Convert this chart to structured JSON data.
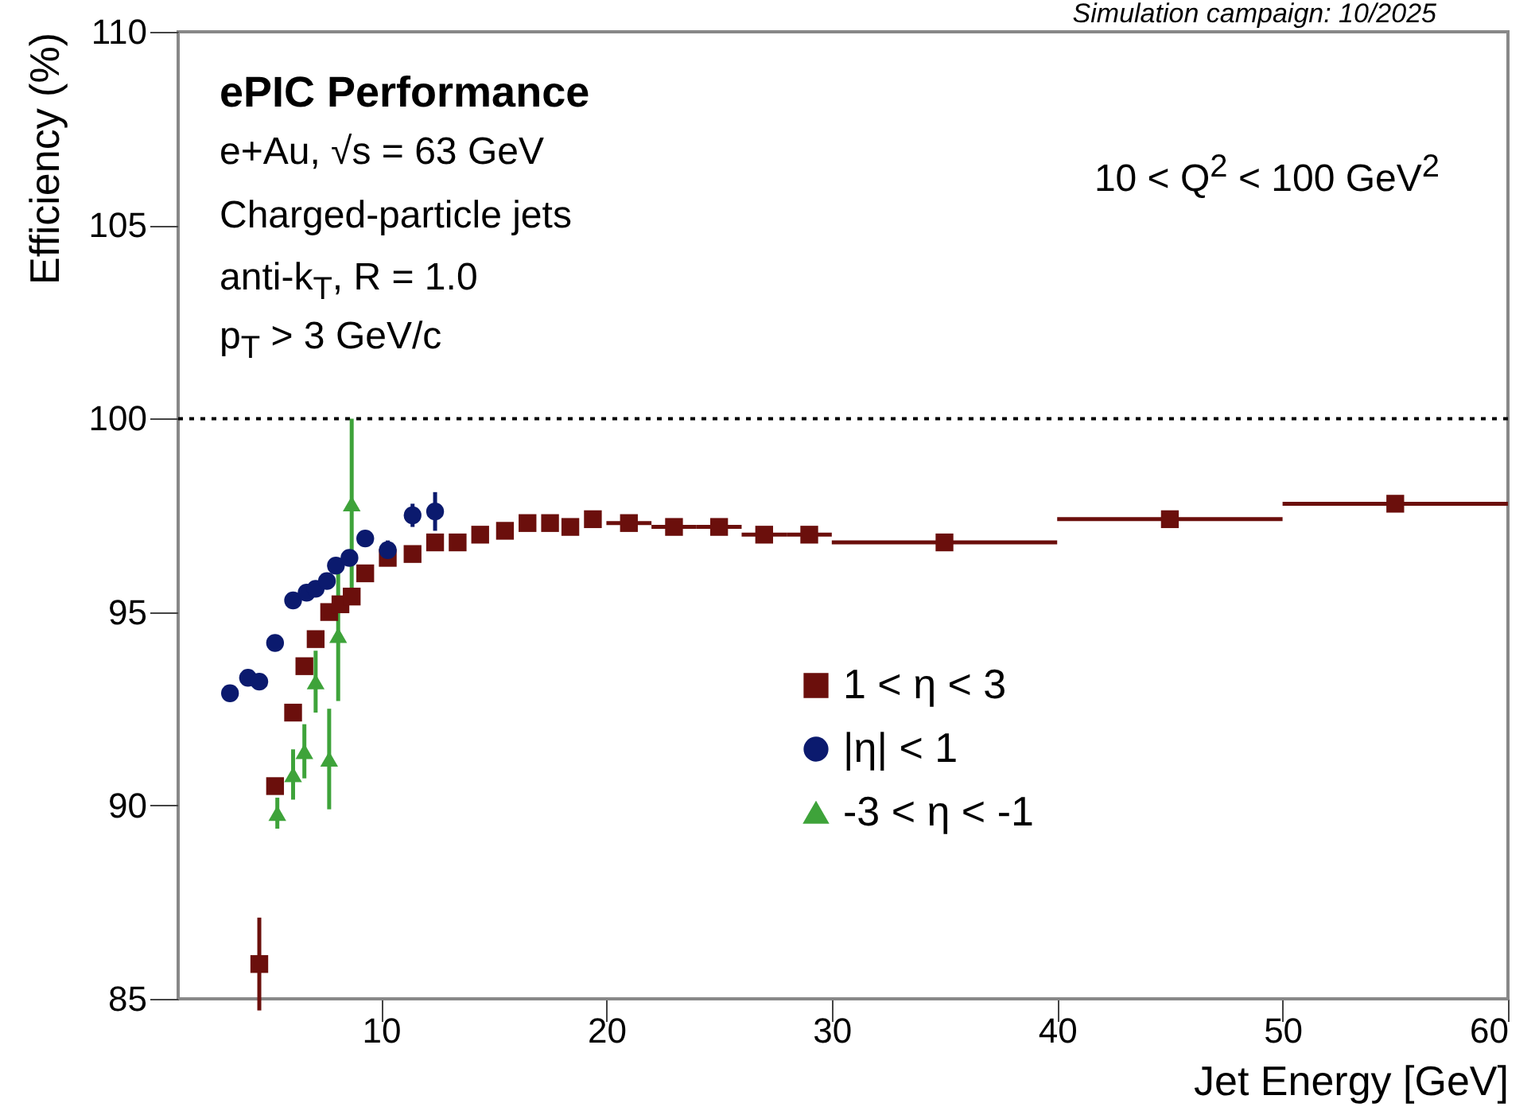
{
  "chart_data": {
    "type": "scatter",
    "title": "ePIC Performance",
    "subtitle": "Simulation campaign: 10/2025",
    "xlabel": "Jet Energy [GeV]",
    "ylabel": "Efficiency (%)",
    "annotations": [
      "e+Au, √s = 63 GeV",
      "Charged-particle jets",
      "anti-k$_{T}$, R = 1.0",
      "p$_{T}$ > 3 GeV/c",
      "10 < Q$^{2}$ < 100 GeV$^{2}$"
    ],
    "xlim": [
      1,
      60
    ],
    "xticks": [
      10,
      20,
      30,
      40,
      50,
      60
    ],
    "ylim": [
      85,
      110
    ],
    "yticks": [
      85,
      90,
      95,
      100,
      105,
      110
    ],
    "grid": false,
    "legend": "right",
    "ref_lines": [
      {
        "axis": "y",
        "value": 100,
        "color": "#000000",
        "line_style": "dotted"
      }
    ],
    "series": [
      {
        "name": "1 < η < 3",
        "color": "#6b0f0c",
        "marker": "square",
        "x": [
          4.6,
          5.3,
          6.1,
          6.6,
          7.1,
          7.7,
          8.2,
          8.7,
          9.3,
          10.3,
          11.4,
          12.4,
          13.4,
          14.4,
          15.5,
          16.5,
          17.5,
          18.4,
          19.4,
          21,
          23,
          25,
          27,
          29,
          35,
          45,
          55
        ],
        "values": [
          85.9,
          90.5,
          92.4,
          93.6,
          94.3,
          95.0,
          95.2,
          95.4,
          96.0,
          96.4,
          96.5,
          96.8,
          96.8,
          97.0,
          97.1,
          97.3,
          97.3,
          97.2,
          97.4,
          97.3,
          97.2,
          97.2,
          97.0,
          97.0,
          96.8,
          97.4,
          97.8
        ],
        "errors": [
          1.2,
          null,
          null,
          null,
          null,
          null,
          null,
          null,
          null,
          null,
          null,
          null,
          null,
          null,
          null,
          null,
          null,
          null,
          null,
          null,
          null,
          null,
          null,
          null,
          null,
          null,
          null
        ],
        "xerrors": [
          null,
          null,
          null,
          null,
          null,
          null,
          null,
          null,
          null,
          null,
          null,
          null,
          null,
          null,
          null,
          null,
          null,
          null,
          null,
          1,
          1,
          1,
          1,
          1,
          5,
          5,
          5
        ]
      },
      {
        "name": "|η| < 1",
        "color": "#0b1a6e",
        "marker": "circle",
        "x": [
          3.3,
          4.1,
          4.6,
          5.3,
          6.1,
          6.7,
          7.1,
          7.6,
          8.0,
          8.6,
          9.3,
          10.3,
          11.4,
          12.4
        ],
        "values": [
          92.9,
          93.3,
          93.2,
          94.2,
          95.3,
          95.5,
          95.6,
          95.8,
          96.2,
          96.4,
          96.9,
          96.6,
          97.5,
          97.6
        ],
        "errors": [
          null,
          null,
          null,
          null,
          null,
          null,
          null,
          null,
          null,
          null,
          null,
          0.25,
          0.3,
          0.5
        ]
      },
      {
        "name": "-3 < η < -1",
        "color": "#3ea33a",
        "marker": "triangle",
        "x": [
          5.4,
          6.1,
          6.6,
          7.1,
          7.7,
          8.1,
          8.7
        ],
        "values": [
          89.8,
          90.8,
          91.4,
          93.2,
          91.2,
          94.4,
          97.8
        ],
        "errors": [
          0.4,
          0.65,
          0.7,
          0.8,
          1.3,
          1.7,
          2.2
        ]
      }
    ]
  }
}
